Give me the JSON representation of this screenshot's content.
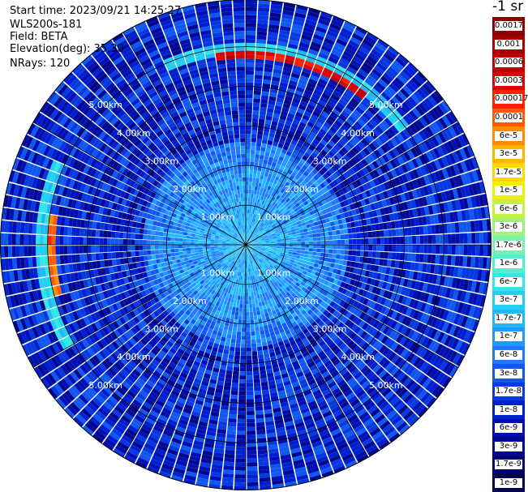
{
  "info": {
    "start_time": "Start time: 2023/09/21 14:25:27",
    "instrument": "WLS200s-181",
    "field": "Field: BETA",
    "elevation": "Elevation(deg): 35.30",
    "nrays": "NRays: 120"
  },
  "colorbar": {
    "title": "-1 sr",
    "labels": [
      "0.0017",
      "0.001",
      "0.0006",
      "0.0003",
      "0.00017",
      "0.0001",
      "6e-5",
      "3e-5",
      "1.7e-5",
      "1e-5",
      "6e-6",
      "3e-6",
      "1.7e-6",
      "1e-6",
      "6e-7",
      "3e-7",
      "1.7e-7",
      "1e-7",
      "6e-8",
      "3e-8",
      "1.7e-8",
      "1e-8",
      "6e-9",
      "3e-9",
      "1.7e-9",
      "1e-9"
    ],
    "colors": [
      "#8b0000",
      "#a50000",
      "#c00000",
      "#e00000",
      "#ff2000",
      "#ff5a00",
      "#ff8c00",
      "#ffb400",
      "#ffd800",
      "#f0f000",
      "#c8f040",
      "#a0f080",
      "#78f0b0",
      "#50f0d0",
      "#30e8e8",
      "#20d0f0",
      "#20b8f8",
      "#2098ff",
      "#2078ff",
      "#1058f0",
      "#0838e0",
      "#0020d0",
      "#0010b0",
      "#000890",
      "#000070",
      "#000050"
    ]
  },
  "chart_data": {
    "type": "heatmap",
    "projection": "polar (PPI scan)",
    "field": "BETA",
    "unit": "sr^-1",
    "elevation_deg": 35.3,
    "n_rays": 120,
    "range_rings_km": [
      1.0,
      2.0,
      3.0,
      4.0,
      5.0
    ],
    "range_ring_labels": [
      "1.00km",
      "2.00km",
      "3.00km",
      "4.00km",
      "5.00km"
    ],
    "max_range_km": 6.2,
    "azimuth_spokes_deg": [
      0,
      30,
      60,
      90,
      120,
      150,
      180,
      210,
      240,
      270,
      300,
      330
    ],
    "color_scale": "log",
    "value_range": [
      1e-09,
      0.0017
    ],
    "background_band": {
      "min_range_km": 0,
      "max_range_km": 6.2,
      "typical_value": 1e-08
    },
    "near_field": {
      "max_range_km": 2.6,
      "typical_value": 2e-07
    },
    "features": [
      {
        "name": "aerosol layer arc",
        "range_km": 4.8,
        "az_start_deg": 350,
        "az_end_deg": 40,
        "value": 0.0003
      },
      {
        "name": "aerosol layer arc west",
        "range_km": 4.9,
        "az_start_deg": 255,
        "az_end_deg": 278,
        "value": 0.0001
      }
    ]
  }
}
